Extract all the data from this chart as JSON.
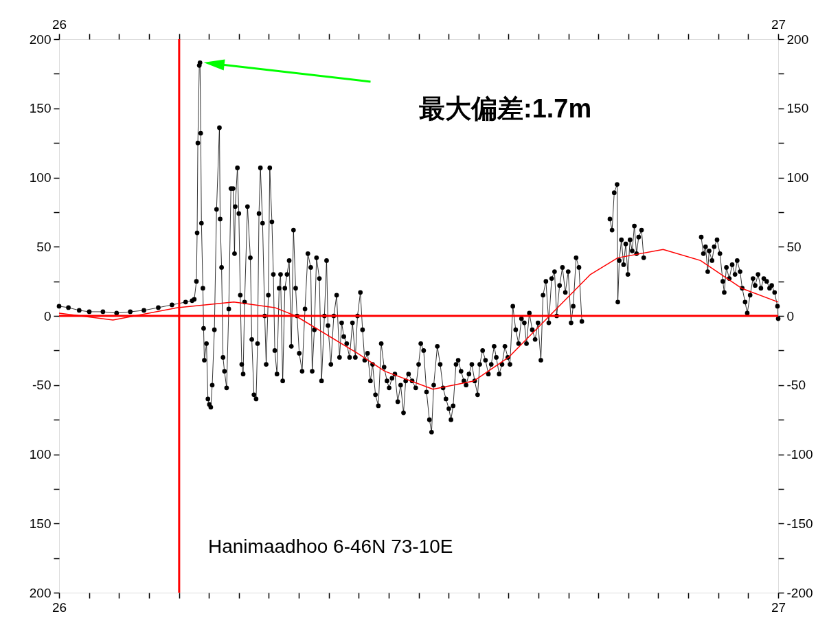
{
  "chart_data": {
    "type": "line",
    "grid": false,
    "xlim": [
      26,
      27
    ],
    "x2lim": [
      26,
      27
    ],
    "xticks": [
      26,
      {
        "value": 26.0417,
        "label": null
      },
      {
        "value": 26.0833,
        "label": null
      },
      {
        "value": 26.125,
        "label": null
      },
      {
        "value": 26.1667,
        "label": null
      },
      {
        "value": 26.2083,
        "label": null
      },
      {
        "value": 26.25,
        "label": null
      },
      {
        "value": 26.2917,
        "label": null
      },
      {
        "value": 26.3333,
        "label": null
      },
      {
        "value": 26.375,
        "label": null
      },
      {
        "value": 26.4167,
        "label": null
      },
      {
        "value": 26.4583,
        "label": null
      },
      {
        "value": 26.5,
        "label": null
      },
      {
        "value": 26.5417,
        "label": null
      },
      {
        "value": 26.5833,
        "label": null
      },
      {
        "value": 26.625,
        "label": null
      },
      {
        "value": 26.6667,
        "label": null
      },
      {
        "value": 26.7083,
        "label": null
      },
      {
        "value": 26.75,
        "label": null
      },
      {
        "value": 26.7917,
        "label": null
      },
      {
        "value": 26.8333,
        "label": null
      },
      {
        "value": 26.875,
        "label": null
      },
      {
        "value": 26.9167,
        "label": null
      },
      {
        "value": 26.9583,
        "label": null
      },
      27
    ],
    "x2ticks": [
      26,
      {
        "value": 26.0417,
        "label": null
      },
      {
        "value": 26.0833,
        "label": null
      },
      {
        "value": 26.125,
        "label": null
      },
      {
        "value": 26.1667,
        "label": null
      },
      {
        "value": 26.2083,
        "label": null
      },
      {
        "value": 26.25,
        "label": null
      },
      {
        "value": 26.2917,
        "label": null
      },
      {
        "value": 26.3333,
        "label": null
      },
      {
        "value": 26.375,
        "label": null
      },
      {
        "value": 26.4167,
        "label": null
      },
      {
        "value": 26.4583,
        "label": null
      },
      {
        "value": 26.5,
        "label": null
      },
      {
        "value": 26.5417,
        "label": null
      },
      {
        "value": 26.5833,
        "label": null
      },
      {
        "value": 26.625,
        "label": null
      },
      {
        "value": 26.6667,
        "label": null
      },
      {
        "value": 26.7083,
        "label": null
      },
      {
        "value": 26.75,
        "label": null
      },
      {
        "value": 26.7917,
        "label": null
      },
      {
        "value": 26.8333,
        "label": null
      },
      {
        "value": 26.875,
        "label": null
      },
      {
        "value": 26.9167,
        "label": null
      },
      {
        "value": 26.9583,
        "label": null
      },
      27
    ],
    "ylim": [
      -200,
      200
    ],
    "yticks": [
      200,
      {
        "value": 175,
        "label": null
      },
      150,
      {
        "value": 125,
        "label": null
      },
      100,
      {
        "value": 75,
        "label": null
      },
      50,
      {
        "value": 25,
        "label": null
      },
      0,
      {
        "value": -25,
        "label": null
      },
      -50,
      {
        "value": -75,
        "label": null
      },
      {
        "value": -100,
        "label": "100"
      },
      {
        "value": -125,
        "label": null
      },
      {
        "value": -150,
        "label": "150"
      },
      {
        "value": -175,
        "label": null
      },
      {
        "value": -200,
        "label": "200"
      }
    ],
    "y2lim": [
      -200,
      200
    ],
    "y2ticks": [
      200,
      {
        "value": 175,
        "label": null
      },
      150,
      {
        "value": 125,
        "label": null
      },
      100,
      {
        "value": 75,
        "label": null
      },
      50,
      {
        "value": 25,
        "label": null
      },
      0,
      {
        "value": -25,
        "label": null
      },
      -50,
      {
        "value": -75,
        "label": null
      },
      -100,
      {
        "value": -125,
        "label": null
      },
      -150,
      {
        "value": -175,
        "label": null
      },
      -200
    ],
    "ref_lines": [
      {
        "axis": "x",
        "value": 26.167,
        "color": "#ff0000"
      },
      {
        "axis": "y",
        "value": 0,
        "color": "#ff0000"
      }
    ],
    "annotations": [
      "最大偏差:1.7m",
      "Hanimaadhoo  6-46N  73-10E"
    ],
    "series": [
      {
        "marker": "circle",
        "color": "#000000",
        "x": [
          26.0,
          26.013,
          26.028,
          26.042,
          26.061,
          26.08,
          26.099,
          26.118,
          26.138,
          26.157,
          26.176,
          26.185,
          26.188,
          26.191,
          26.192,
          26.193,
          26.195,
          26.196,
          26.197,
          26.198,
          26.2,
          26.201,
          26.202,
          26.205,
          26.207,
          26.209,
          26.211,
          26.213,
          26.216,
          26.219,
          26.223,
          26.224,
          26.226,
          26.228,
          26.23,
          26.233,
          26.236,
          26.239,
          26.242,
          26.244,
          26.245,
          26.248,
          26.25,
          26.252,
          26.254,
          26.256,
          26.258,
          26.262,
          26.266,
          26.268,
          26.271,
          26.274,
          26.276,
          26.278,
          26.28,
          26.283,
          26.286,
          26.288,
          26.291,
          26.293,
          26.296,
          26.298,
          26.3,
          26.303,
          26.306,
          26.308,
          26.311,
          26.314,
          26.317,
          26.32,
          26.323,
          26.326,
          26.329,
          26.331,
          26.334,
          26.338,
          26.342,
          26.346,
          26.35,
          26.352,
          26.355,
          26.358,
          26.362,
          26.365,
          26.369,
          26.372,
          26.374,
          26.378,
          26.382,
          26.386,
          26.39,
          26.393,
          26.396,
          26.4,
          26.404,
          26.408,
          26.412,
          26.415,
          26.419,
          26.422,
          26.425,
          26.429,
          26.433,
          26.436,
          26.44,
          26.444,
          26.448,
          26.452,
          26.456,
          26.459,
          26.463,
          26.467,
          26.471,
          26.475,
          26.479,
          26.482,
          26.486,
          26.491,
          26.496,
          26.5,
          26.503,
          26.507,
          26.511,
          26.515,
          26.518,
          26.521,
          26.526,
          26.53,
          26.534,
          26.538,
          26.542,
          26.545,
          26.548,
          26.552,
          26.555,
          26.559,
          26.563,
          26.566,
          26.57,
          26.574,
          26.578,
          26.582,
          26.585,
          26.589,
          26.593,
          26.597,
          26.601,
          26.605,
          26.608,
          26.612,
          26.616,
          26.62,
          26.624,
          26.627,
          26.631,
          26.635,
          26.639,
          26.643,
          26.647,
          26.65,
          26.654,
          26.658,
          26.662,
          26.666,
          26.67,
          26.673,
          26.677,
          26.681,
          26.685,
          26.689,
          26.692,
          26.696,
          26.7,
          26.704,
          26.708,
          26.712,
          26.715,
          26.719,
          26.723,
          26.727,
          26.75,
          26.766,
          26.769,
          26.772,
          26.776,
          26.777,
          26.779,
          26.782,
          26.785,
          26.788,
          26.791,
          26.794,
          26.797,
          26.8,
          26.803,
          26.806,
          26.81,
          26.813,
          26.85,
          26.893,
          26.896,
          26.899,
          26.902,
          26.904,
          26.908,
          26.911,
          26.915,
          26.919,
          26.923,
          26.925,
          26.928,
          26.932,
          26.936,
          26.94,
          26.943,
          26.947,
          26.95,
          26.954,
          26.957,
          26.961,
          26.965,
          26.968,
          26.972,
          26.976,
          26.98,
          26.984,
          26.988,
          26.991,
          26.995,
          26.999,
          27.0
        ],
        "values": [
          7,
          6,
          4,
          3,
          3,
          2,
          3,
          4,
          6,
          8,
          10,
          11,
          12,
          25,
          60,
          125,
          181,
          183,
          132,
          67,
          20,
          -9,
          -32,
          -20,
          -60,
          -64,
          -66,
          -50,
          -10,
          77,
          136,
          70,
          35,
          -30,
          -40,
          -52,
          5,
          92,
          92,
          45,
          79,
          107,
          74,
          15,
          -35,
          -42,
          10,
          79,
          42,
          -17,
          -57,
          -60,
          -20,
          74,
          107,
          67,
          0,
          -35,
          15,
          107,
          68,
          30,
          -25,
          -42,
          20,
          30,
          -47,
          20,
          30,
          40,
          -22,
          62,
          20,
          0,
          -27,
          -40,
          5,
          45,
          35,
          -40,
          -10,
          42,
          27,
          -47,
          0,
          40,
          -7,
          -35,
          0,
          15,
          -30,
          -5,
          -15,
          -20,
          -30,
          -5,
          -30,
          0,
          17,
          -10,
          -32,
          -27,
          -47,
          -35,
          -57,
          -65,
          -20,
          -37,
          -47,
          -52,
          -45,
          -42,
          -62,
          -50,
          -70,
          -47,
          -42,
          -47,
          -52,
          -35,
          -20,
          -25,
          -55,
          -75,
          -84,
          -50,
          -22,
          -35,
          -52,
          -60,
          -67,
          -75,
          -65,
          -35,
          -32,
          -40,
          -47,
          -50,
          -42,
          -35,
          -47,
          -57,
          -35,
          -25,
          -32,
          -42,
          -35,
          -22,
          -30,
          -42,
          -35,
          -22,
          -30,
          -35,
          7,
          -10,
          -20,
          -2,
          -5,
          -20,
          2,
          -10,
          -17,
          -5,
          -32,
          15,
          25,
          -5,
          27,
          32,
          0,
          22,
          35,
          17,
          32,
          -5,
          7,
          42,
          35,
          -4,
          null,
          70,
          62,
          89,
          95,
          10,
          40,
          55,
          37,
          52,
          30,
          55,
          47,
          65,
          45,
          57,
          62,
          42,
          null,
          57,
          45,
          50,
          32,
          47,
          40,
          50,
          55,
          45,
          25,
          17,
          35,
          27,
          37,
          30,
          40,
          32,
          20,
          10,
          2,
          15,
          27,
          22,
          30,
          20,
          27,
          25,
          20,
          22,
          17,
          7,
          -2
        ]
      },
      {
        "marker": "none",
        "color": "#ff0000",
        "x": [
          26.0,
          26.075,
          26.165,
          26.243,
          26.3,
          26.329,
          26.415,
          26.453,
          26.52,
          26.577,
          26.625,
          26.682,
          26.739,
          26.777,
          26.84,
          26.892,
          26.949,
          27.0
        ],
        "values": [
          2,
          -3,
          6,
          10,
          6,
          0,
          -27,
          -40,
          -53,
          -47,
          -30,
          0,
          30,
          42,
          48,
          40,
          20,
          10
        ]
      }
    ]
  }
}
